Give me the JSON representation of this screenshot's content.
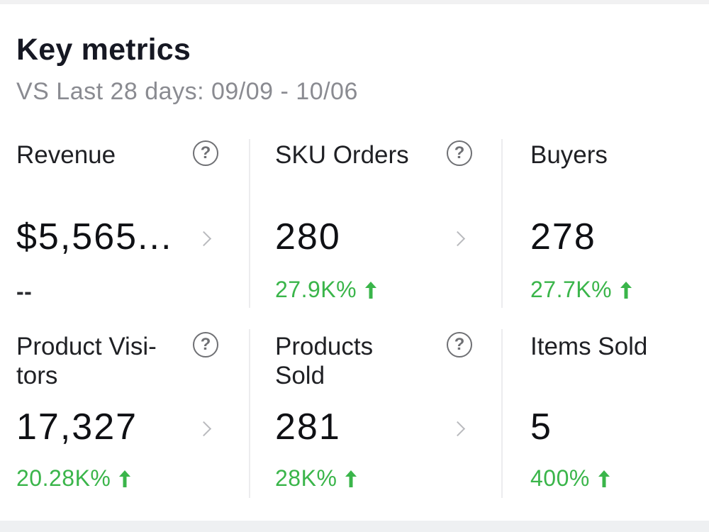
{
  "header": {
    "title": "Key metrics",
    "subtitle": "VS Last 28 days: 09/09 - 10/06"
  },
  "colors": {
    "positive": "#3ab54a",
    "text": "#161823",
    "muted": "#8a8b91"
  },
  "metrics": [
    {
      "label": "Revenue",
      "value": "$5,565...",
      "change": "--",
      "trend": "none"
    },
    {
      "label": "SKU Orders",
      "value": "280",
      "change": "27.9K%",
      "trend": "up"
    },
    {
      "label": "Buyers",
      "value": "278",
      "change": "27.7K%",
      "trend": "up"
    },
    {
      "label": "Product Visi-\ntors",
      "value": "17,327",
      "change": "20.28K%",
      "trend": "up"
    },
    {
      "label": "Products\nSold",
      "value": "281",
      "change": "28K%",
      "trend": "up"
    },
    {
      "label": "Items Sold",
      "value": "5",
      "change": "400%",
      "trend": "up"
    }
  ],
  "icons": {
    "help": "question-circle-icon",
    "chevron": "chevron-right-icon",
    "trend_up": "arrow-up-icon"
  },
  "help_glyph": "?"
}
